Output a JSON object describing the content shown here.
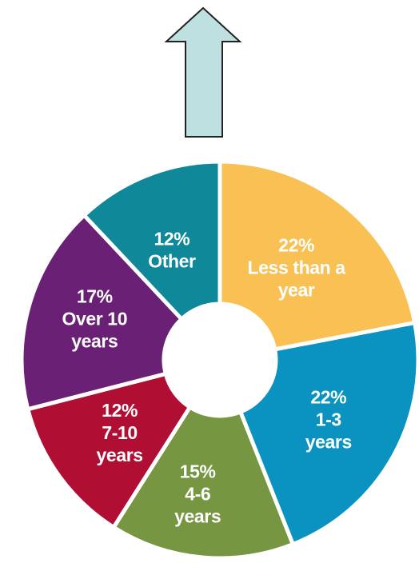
{
  "chart_data": {
    "type": "pie",
    "style": "donut",
    "slices": [
      {
        "percent_label": "22%",
        "name_lines": [
          "Less than a",
          "year"
        ],
        "value": 22,
        "color": "#f9c154"
      },
      {
        "percent_label": "22%",
        "name_lines": [
          "1-3",
          "years"
        ],
        "value": 22,
        "color": "#0a93c0"
      },
      {
        "percent_label": "15%",
        "name_lines": [
          "4-6",
          "years"
        ],
        "value": 15,
        "color": "#779641"
      },
      {
        "percent_label": "12%",
        "name_lines": [
          "7-10",
          "years"
        ],
        "value": 12,
        "color": "#b10e33"
      },
      {
        "percent_label": "17%",
        "name_lines": [
          "Over 10",
          "years"
        ],
        "value": 17,
        "color": "#6a2074"
      },
      {
        "percent_label": "12%",
        "name_lines": [
          "Other"
        ],
        "value": 12,
        "color": "#0f8899"
      }
    ]
  },
  "arrow": {
    "direction": "up",
    "fill": "#bfe0e0",
    "stroke": "#222222"
  }
}
